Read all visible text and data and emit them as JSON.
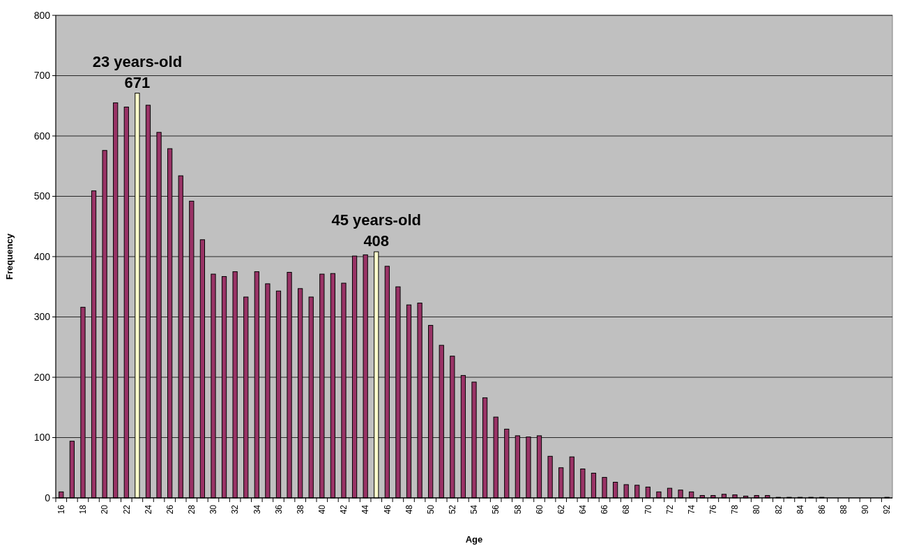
{
  "chart_data": {
    "type": "bar",
    "xlabel": "Age",
    "ylabel": "Frequency",
    "categories": [
      "16",
      null,
      "18",
      null,
      "20",
      null,
      "22",
      null,
      "24",
      null,
      "26",
      null,
      "28",
      null,
      "30",
      null,
      "32",
      null,
      "34",
      null,
      "36",
      null,
      "38",
      null,
      "40",
      null,
      "42",
      null,
      "44",
      null,
      "46",
      null,
      "48",
      null,
      "50",
      null,
      "52",
      null,
      "54",
      null,
      "56",
      null,
      "58",
      null,
      "60",
      null,
      "62",
      null,
      "64",
      null,
      "66",
      null,
      "68",
      null,
      "70",
      null,
      "72",
      null,
      "74",
      null,
      "76",
      null,
      "78",
      null,
      "80",
      null,
      "82",
      null,
      "84",
      null,
      "86",
      null,
      "88",
      null,
      "90",
      null,
      "92"
    ],
    "values": [
      10,
      94,
      316,
      509,
      576,
      655,
      648,
      671,
      651,
      606,
      579,
      534,
      492,
      428,
      371,
      367,
      375,
      333,
      375,
      355,
      343,
      374,
      347,
      333,
      371,
      372,
      356,
      401,
      403,
      408,
      384,
      350,
      320,
      323,
      286,
      253,
      235,
      203,
      192,
      166,
      134,
      114,
      103,
      101,
      103,
      69,
      50,
      68,
      48,
      41,
      34,
      26,
      22,
      21,
      18,
      10,
      16,
      13,
      10,
      4,
      4,
      6,
      5,
      3,
      4,
      4,
      1,
      1,
      1,
      1,
      1,
      0,
      0,
      0,
      0,
      0,
      1
    ],
    "colors": [
      "#993366",
      "#993366",
      "#993366",
      "#993366",
      "#993366",
      "#993366",
      "#993366",
      "#ffffcc",
      "#993366",
      "#993366",
      "#993366",
      "#993366",
      "#993366",
      "#993366",
      "#993366",
      "#993366",
      "#993366",
      "#993366",
      "#993366",
      "#993366",
      "#993366",
      "#993366",
      "#993366",
      "#993366",
      "#993366",
      "#993366",
      "#993366",
      "#993366",
      "#993366",
      "#ffffcc",
      "#993366",
      "#993366",
      "#993366",
      "#993366",
      "#993366",
      "#993366",
      "#993366",
      "#993366",
      "#993366",
      "#993366",
      "#993366",
      "#993366",
      "#993366",
      "#993366",
      "#993366",
      "#993366",
      "#993366",
      "#993366",
      "#993366",
      "#993366",
      "#993366",
      "#993366",
      "#993366",
      "#993366",
      "#993366",
      "#993366",
      "#993366",
      "#993366",
      "#993366",
      "#993366",
      "#993366",
      "#993366",
      "#993366",
      "#993366",
      "#993366",
      "#993366",
      "#993366",
      "#993366",
      "#993366",
      "#993366",
      "#993366",
      "#993366",
      "#993366",
      "#993366",
      "#993366",
      "#993366",
      "#993366"
    ],
    "value_labels": [
      null,
      null,
      null,
      null,
      null,
      null,
      null,
      "23 years-old\n671",
      null,
      null,
      null,
      null,
      null,
      null,
      null,
      null,
      null,
      null,
      null,
      null,
      null,
      null,
      null,
      null,
      null,
      null,
      null,
      null,
      null,
      "45 years-old\n408",
      null,
      null,
      null,
      null,
      null,
      null,
      null,
      null,
      null,
      null,
      null,
      null,
      null,
      null,
      null,
      null,
      null,
      null,
      null,
      null,
      null,
      null,
      null,
      null,
      null,
      null,
      null,
      null,
      null,
      null,
      null,
      null,
      null,
      null,
      null,
      null,
      null,
      null,
      null,
      null,
      null,
      null,
      null,
      null,
      null,
      null,
      null
    ],
    "ylim": [
      0,
      800
    ],
    "yticks": [
      0,
      100,
      200,
      300,
      400,
      500,
      600,
      700,
      800
    ],
    "grid": "y"
  }
}
